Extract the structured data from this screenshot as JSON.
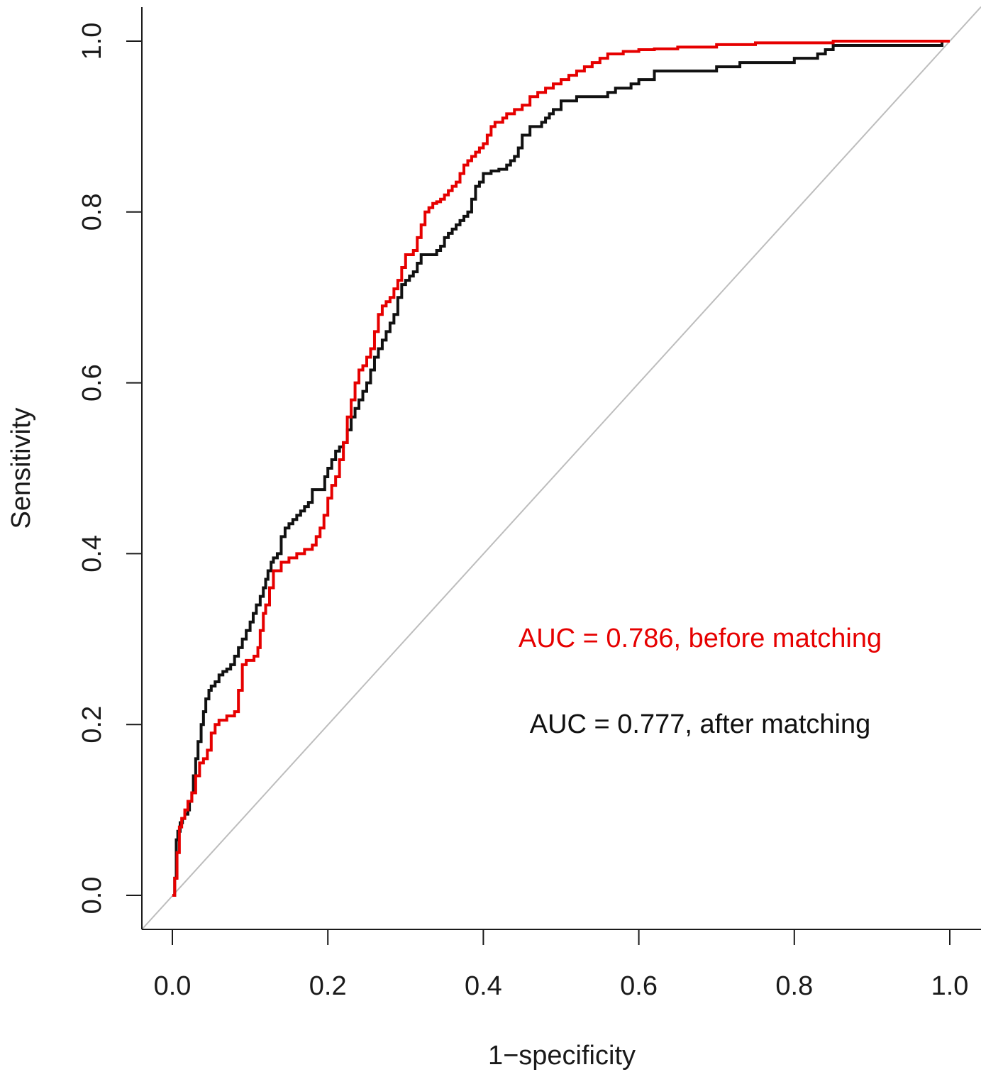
{
  "chart_data": {
    "type": "line",
    "title": "",
    "xlabel": "1−specificity",
    "ylabel": "Sensitivity",
    "xlim": [
      0.0,
      1.0
    ],
    "ylim": [
      0.0,
      1.0
    ],
    "x_ticks": [
      "0.0",
      "0.2",
      "0.4",
      "0.6",
      "0.8",
      "1.0"
    ],
    "y_ticks": [
      "0.0",
      "0.2",
      "0.4",
      "0.6",
      "0.8",
      "1.0"
    ],
    "grid": false,
    "legend": "none",
    "reference_line": {
      "x": [
        0,
        1
      ],
      "y": [
        0,
        1
      ],
      "color": "#bdbdbd"
    },
    "annotations": [
      {
        "text": "AUC = 0.786, before matching",
        "color": "#e60000"
      },
      {
        "text": "AUC = 0.777, after matching",
        "color": "#111111"
      }
    ],
    "series": [
      {
        "color": "#111111",
        "x": [
          0,
          0.003,
          0.005,
          0.007,
          0.01,
          0.013,
          0.016,
          0.02,
          0.022,
          0.025,
          0.027,
          0.03,
          0.033,
          0.037,
          0.04,
          0.043,
          0.047,
          0.05,
          0.055,
          0.06,
          0.065,
          0.07,
          0.075,
          0.08,
          0.085,
          0.09,
          0.095,
          0.1,
          0.104,
          0.108,
          0.113,
          0.117,
          0.12,
          0.123,
          0.127,
          0.13,
          0.135,
          0.14,
          0.145,
          0.15,
          0.155,
          0.16,
          0.165,
          0.17,
          0.175,
          0.18,
          0.19,
          0.196,
          0.2,
          0.205,
          0.21,
          0.215,
          0.22,
          0.225,
          0.23,
          0.235,
          0.24,
          0.245,
          0.25,
          0.255,
          0.26,
          0.265,
          0.27,
          0.275,
          0.28,
          0.285,
          0.29,
          0.295,
          0.3,
          0.305,
          0.31,
          0.315,
          0.32,
          0.33,
          0.34,
          0.345,
          0.35,
          0.355,
          0.36,
          0.365,
          0.37,
          0.375,
          0.38,
          0.385,
          0.39,
          0.395,
          0.4,
          0.405,
          0.41,
          0.42,
          0.43,
          0.435,
          0.44,
          0.445,
          0.45,
          0.46,
          0.47,
          0.475,
          0.48,
          0.485,
          0.49,
          0.5,
          0.52,
          0.54,
          0.56,
          0.57,
          0.59,
          0.6,
          0.62,
          0.7,
          0.72,
          0.73,
          0.8,
          0.83,
          0.84,
          0.85,
          0.9,
          0.95,
          0.99,
          1.0
        ],
        "y": [
          0,
          0.02,
          0.065,
          0.075,
          0.085,
          0.09,
          0.095,
          0.1,
          0.11,
          0.12,
          0.14,
          0.16,
          0.18,
          0.2,
          0.215,
          0.23,
          0.24,
          0.245,
          0.25,
          0.258,
          0.262,
          0.265,
          0.27,
          0.28,
          0.29,
          0.3,
          0.31,
          0.32,
          0.33,
          0.34,
          0.35,
          0.36,
          0.37,
          0.38,
          0.39,
          0.395,
          0.4,
          0.42,
          0.43,
          0.435,
          0.44,
          0.445,
          0.45,
          0.455,
          0.46,
          0.475,
          0.475,
          0.49,
          0.5,
          0.51,
          0.52,
          0.525,
          0.53,
          0.545,
          0.56,
          0.57,
          0.58,
          0.59,
          0.6,
          0.615,
          0.63,
          0.64,
          0.65,
          0.66,
          0.67,
          0.68,
          0.7,
          0.715,
          0.72,
          0.725,
          0.73,
          0.74,
          0.75,
          0.75,
          0.755,
          0.76,
          0.77,
          0.775,
          0.78,
          0.785,
          0.79,
          0.795,
          0.8,
          0.815,
          0.83,
          0.835,
          0.845,
          0.845,
          0.848,
          0.85,
          0.855,
          0.86,
          0.865,
          0.875,
          0.89,
          0.9,
          0.9,
          0.905,
          0.91,
          0.915,
          0.92,
          0.93,
          0.935,
          0.935,
          0.94,
          0.945,
          0.95,
          0.955,
          0.965,
          0.97,
          0.97,
          0.975,
          0.98,
          0.985,
          0.99,
          0.995,
          0.995,
          0.995,
          1.0,
          1.0
        ]
      },
      {
        "color": "#e60000",
        "x": [
          0,
          0.003,
          0.006,
          0.009,
          0.012,
          0.016,
          0.02,
          0.025,
          0.03,
          0.035,
          0.04,
          0.045,
          0.05,
          0.055,
          0.06,
          0.07,
          0.08,
          0.085,
          0.09,
          0.095,
          0.1,
          0.105,
          0.11,
          0.113,
          0.117,
          0.12,
          0.125,
          0.13,
          0.14,
          0.15,
          0.16,
          0.17,
          0.18,
          0.185,
          0.19,
          0.195,
          0.2,
          0.205,
          0.21,
          0.215,
          0.22,
          0.225,
          0.23,
          0.235,
          0.24,
          0.245,
          0.25,
          0.255,
          0.26,
          0.265,
          0.27,
          0.275,
          0.28,
          0.285,
          0.29,
          0.295,
          0.3,
          0.305,
          0.31,
          0.315,
          0.32,
          0.325,
          0.33,
          0.335,
          0.34,
          0.345,
          0.35,
          0.355,
          0.36,
          0.365,
          0.37,
          0.375,
          0.38,
          0.385,
          0.39,
          0.395,
          0.4,
          0.405,
          0.41,
          0.415,
          0.42,
          0.425,
          0.43,
          0.44,
          0.45,
          0.46,
          0.47,
          0.48,
          0.49,
          0.5,
          0.51,
          0.52,
          0.53,
          0.54,
          0.55,
          0.56,
          0.58,
          0.6,
          0.62,
          0.65,
          0.7,
          0.75,
          0.8,
          0.85,
          0.9,
          0.95,
          1.0
        ],
        "y": [
          0,
          0.02,
          0.05,
          0.08,
          0.09,
          0.1,
          0.11,
          0.12,
          0.14,
          0.155,
          0.16,
          0.17,
          0.19,
          0.2,
          0.205,
          0.21,
          0.215,
          0.24,
          0.27,
          0.275,
          0.275,
          0.28,
          0.29,
          0.31,
          0.33,
          0.34,
          0.36,
          0.38,
          0.39,
          0.395,
          0.4,
          0.405,
          0.41,
          0.42,
          0.43,
          0.445,
          0.465,
          0.48,
          0.49,
          0.51,
          0.53,
          0.56,
          0.58,
          0.6,
          0.615,
          0.62,
          0.63,
          0.64,
          0.66,
          0.68,
          0.69,
          0.695,
          0.7,
          0.71,
          0.72,
          0.735,
          0.75,
          0.75,
          0.755,
          0.77,
          0.785,
          0.8,
          0.805,
          0.81,
          0.812,
          0.815,
          0.82,
          0.825,
          0.83,
          0.835,
          0.845,
          0.855,
          0.86,
          0.865,
          0.87,
          0.875,
          0.88,
          0.89,
          0.9,
          0.905,
          0.905,
          0.91,
          0.915,
          0.92,
          0.925,
          0.935,
          0.94,
          0.945,
          0.95,
          0.955,
          0.96,
          0.965,
          0.97,
          0.975,
          0.98,
          0.985,
          0.988,
          0.99,
          0.991,
          0.993,
          0.996,
          0.998,
          0.998,
          1.0,
          1.0,
          1.0,
          1.0
        ]
      }
    ]
  }
}
